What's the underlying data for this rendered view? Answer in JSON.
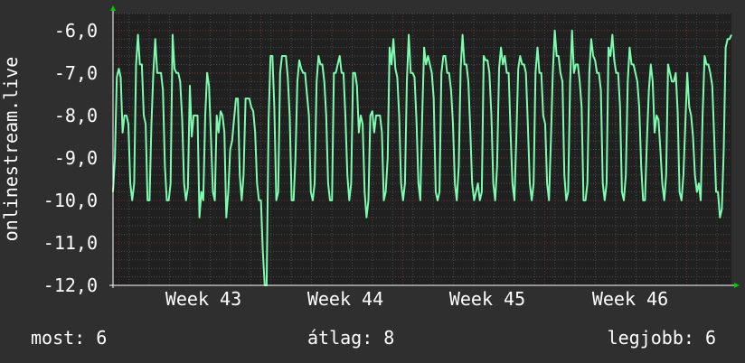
{
  "chart_data": {
    "type": "line",
    "ylabel": "onlinestream.live",
    "xlabel": "",
    "title": "",
    "ylim": [
      -12.0,
      -5.6
    ],
    "yticks": [
      -12.0,
      -11.0,
      -10.0,
      -9.0,
      -8.0,
      -7.0,
      -6.0
    ],
    "ytick_labels": [
      "-12,0",
      "-11,0",
      "-10,0",
      "-9,0",
      "-8,0",
      "-7,0",
      "-6,0"
    ],
    "x_label_ticks": [
      "Week 43",
      "Week 44",
      "Week 45",
      "Week 46"
    ],
    "grid": true,
    "colors": {
      "background": "#2f2f2f",
      "plot": "#202020",
      "line": "#7dfcb0",
      "grid": "#4a4a4a",
      "major_grid": "#6b3030",
      "axis": "#ffffff",
      "arrow": "#00cc00"
    },
    "series": [
      {
        "values": [
          -9.8,
          -9.0,
          -7.1,
          -6.9,
          -7.1,
          -8.4,
          -8.0,
          -8.0,
          -8.2,
          -9.6,
          -10.0,
          -9.6,
          -6.8,
          -6.1,
          -6.8,
          -6.8,
          -8.0,
          -8.2,
          -10.0,
          -10.0,
          -8.2,
          -7.0,
          -6.2,
          -7.0,
          -7.0,
          -7.0,
          -7.4,
          -9.2,
          -10.0,
          -10.0,
          -9.6,
          -6.1,
          -6.9,
          -7.0,
          -7.0,
          -7.2,
          -8.1,
          -9.6,
          -10.0,
          -9.7,
          -7.3,
          -8.5,
          -8.0,
          -8.0,
          -8.0,
          -10.4,
          -9.8,
          -10.0,
          -8.0,
          -7.0,
          -7.3,
          -8.5,
          -9.8,
          -10.0,
          -8.0,
          -8.4,
          -7.9,
          -8.0,
          -8.4,
          -10.4,
          -9.8,
          -8.8,
          -8.6,
          -8.1,
          -7.6,
          -7.6,
          -9.4,
          -10.0,
          -9.4,
          -7.6,
          -7.6,
          -7.6,
          -7.8,
          -7.9,
          -8.4,
          -9.6,
          -10.0,
          -10.0,
          -11.2,
          -12.0,
          -12.0,
          -8.1,
          -6.6,
          -6.6,
          -7.8,
          -10.0,
          -9.8,
          -7.0,
          -6.6,
          -6.6,
          -6.6,
          -7.1,
          -8.0,
          -10.0,
          -10.0,
          -9.0,
          -7.2,
          -6.7,
          -6.9,
          -7.0,
          -7.0,
          -7.5,
          -8.0,
          -9.8,
          -10.0,
          -9.6,
          -7.2,
          -6.6,
          -6.8,
          -6.8,
          -7.2,
          -8.0,
          -9.6,
          -10.0,
          -10.0,
          -7.0,
          -7.0,
          -6.8,
          -6.6,
          -7.0,
          -7.0,
          -8.0,
          -9.4,
          -10.0,
          -9.6,
          -7.0,
          -7.0,
          -7.3,
          -8.4,
          -8.0,
          -8.2,
          -9.8,
          -10.4,
          -10.0,
          -8.0,
          -7.9,
          -8.4,
          -8.0,
          -8.0,
          -8.0,
          -8.4,
          -10.0,
          -9.8,
          -9.0,
          -6.4,
          -6.8,
          -6.2,
          -6.9,
          -7.1,
          -8.0,
          -9.6,
          -10.0,
          -9.6,
          -7.2,
          -6.1,
          -7.0,
          -7.0,
          -7.1,
          -8.1,
          -9.6,
          -10.0,
          -8.0,
          -6.4,
          -6.8,
          -6.6,
          -6.8,
          -7.0,
          -7.6,
          -9.8,
          -10.0,
          -9.8,
          -7.0,
          -6.6,
          -6.6,
          -7.0,
          -7.0,
          -7.4,
          -8.2,
          -9.6,
          -10.0,
          -9.2,
          -6.9,
          -6.1,
          -6.8,
          -6.8,
          -7.2,
          -8.3,
          -9.6,
          -10.0,
          -9.8,
          -9.6,
          -10.0,
          -9.8,
          -6.6,
          -6.7,
          -6.7,
          -7.0,
          -8.0,
          -9.6,
          -10.0,
          -9.2,
          -6.9,
          -6.4,
          -6.8,
          -6.6,
          -7.0,
          -7.0,
          -8.4,
          -9.6,
          -10.0,
          -8.5,
          -6.9,
          -6.6,
          -6.8,
          -6.8,
          -7.0,
          -8.2,
          -9.6,
          -10.0,
          -9.6,
          -7.0,
          -6.4,
          -7.0,
          -7.0,
          -8.0,
          -8.2,
          -9.6,
          -10.0,
          -8.6,
          -7.0,
          -6.0,
          -6.6,
          -6.6,
          -7.0,
          -7.2,
          -9.4,
          -10.0,
          -9.8,
          -7.2,
          -6.0,
          -7.0,
          -6.8,
          -6.8,
          -7.2,
          -7.8,
          -10.0,
          -10.0,
          -9.6,
          -7.0,
          -6.2,
          -6.6,
          -6.7,
          -7.0,
          -7.0,
          -7.4,
          -9.6,
          -10.0,
          -9.6,
          -6.4,
          -6.6,
          -6.1,
          -6.7,
          -7.0,
          -7.0,
          -7.8,
          -9.8,
          -10.0,
          -9.4,
          -7.2,
          -6.4,
          -6.8,
          -6.8,
          -7.0,
          -7.2,
          -7.8,
          -9.2,
          -10.0,
          -10.0,
          -8.6,
          -7.4,
          -6.8,
          -7.2,
          -8.4,
          -8.0,
          -8.1,
          -8.8,
          -9.6,
          -10.0,
          -9.4,
          -6.8,
          -7.0,
          -7.2,
          -7.2,
          -7.0,
          -7.9,
          -9.8,
          -10.0,
          -9.4,
          -8.2,
          -7.0,
          -7.8,
          -8.0,
          -8.5,
          -9.4,
          -9.8,
          -9.6,
          -10.0,
          -8.0,
          -6.6,
          -6.8,
          -6.8,
          -7.0,
          -7.3,
          -8.5,
          -9.8,
          -9.8,
          -10.4,
          -10.2,
          -8.8,
          -6.4,
          -6.2,
          -6.2,
          -6.1
        ]
      }
    ]
  },
  "stats": {
    "current": "most: 6",
    "average": "átlag: 8",
    "max": "legjobb: 6"
  }
}
